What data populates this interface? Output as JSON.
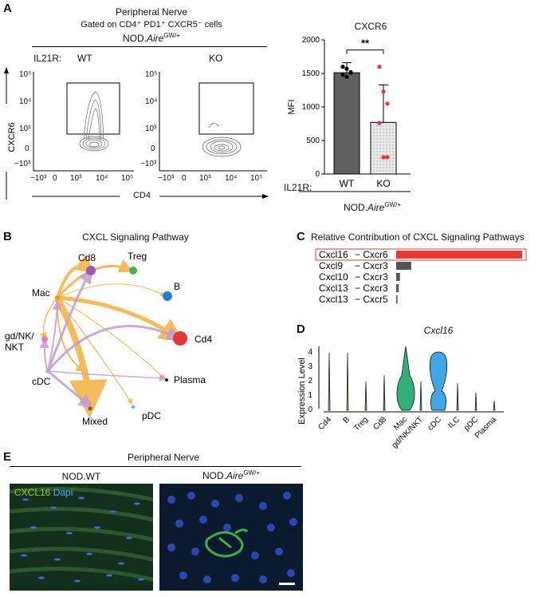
{
  "panel_labels": [
    "A",
    "B",
    "C",
    "D",
    "E"
  ],
  "panelA": {
    "tissue": "Peripheral Nerve",
    "gate": "Gated on CD4⁺ PD1⁺ CXCR5⁻ cells",
    "strain_prefix": "NOD.",
    "strain_gene": "Aire",
    "strain_sup": "GW/+",
    "il21r_label": "IL21R:",
    "wt_label": "WT",
    "ko_label": "KO",
    "y_axis": "CXCR6",
    "x_axis": "CD4",
    "flow_ticks_y": [
      "10⁵",
      "10⁴",
      "10³",
      "0",
      "−10³"
    ],
    "flow_ticks_x": [
      "−10³",
      "0",
      "10³",
      "10⁴",
      "10⁵"
    ]
  },
  "panelB": {
    "title": "CXCL Signaling Pathway",
    "nodes": [
      {
        "label": "Cd8",
        "color": "#9b59b6"
      },
      {
        "label": "Treg",
        "color": "#4caf50"
      },
      {
        "label": "B",
        "color": "#2b7bd0"
      },
      {
        "label": "Cd4",
        "color": "#e53935"
      },
      {
        "label": "Plasma",
        "color": "#222222"
      },
      {
        "label": "pDC",
        "color": "#5fb3e8"
      },
      {
        "label": "Mixed",
        "color": "#8b5a2b"
      },
      {
        "label": "cDC",
        "color": "#b39ddb"
      },
      {
        "label": "gd/NK/",
        "label2": "NKT",
        "color": "#e879c0"
      },
      {
        "label": "Mac",
        "color": "#f39c12"
      }
    ]
  },
  "panelC": {
    "title": "Relative Contribution of CXCL Signaling Pathways",
    "pairs": [
      {
        "ligand": "Cxcl16",
        "receptor": "− Cxcr6",
        "value": 1.0,
        "color": "#e53935",
        "highlight": true
      },
      {
        "ligand": "Cxcl9",
        "receptor": "− Cxcr3",
        "value": 0.12,
        "color": "#555555"
      },
      {
        "ligand": "Cxcl10",
        "receptor": "− Cxcr3",
        "value": 0.03,
        "color": "#555555"
      },
      {
        "ligand": "Cxcl13",
        "receptor": "− Cxcr3",
        "value": 0.02,
        "color": "#555555"
      },
      {
        "ligand": "Cxcl13",
        "receptor": "− Cxcr5",
        "value": 0.01,
        "color": "#555555"
      }
    ]
  },
  "panelD": {
    "gene": "Cxcl16",
    "ylabel": "Expression Level",
    "yticks": [
      "4",
      "3",
      "2",
      "1",
      "0"
    ],
    "categories": [
      "Cd4",
      "B",
      "Treg",
      "Cd8",
      "Mac",
      "gd/NK/NKT",
      "cDC",
      "ILC",
      "pDC",
      "Plasma"
    ]
  },
  "panelE": {
    "tissue": "Peripheral Nerve",
    "left_title": "NOD.WT",
    "right_prefix": "NOD.",
    "right_gene": "Aire",
    "right_sup": "GW/+",
    "stain1": "CXCL16",
    "stain2": "Dapi",
    "stain1_color": "#9acd32",
    "stain2_color": "#4aa3ff"
  },
  "chart_data": {
    "type": "bar",
    "title": "CXCR6",
    "categories": [
      "WT",
      "KO"
    ],
    "values": [
      1510,
      770
    ],
    "errors": [
      150,
      560
    ],
    "points": [
      [
        1600,
        1570,
        1520,
        1480,
        1450,
        1510
      ],
      [
        1600,
        1230,
        1050,
        760,
        250,
        250
      ]
    ],
    "ylabel": "MFI",
    "ylim": [
      0,
      2000
    ],
    "yticks": [
      "2000",
      "1500",
      "1000",
      "500",
      "0"
    ],
    "significance": "**",
    "x_prefix": "IL21R:",
    "group_label_prefix": "NOD.",
    "group_label_gene": "Aire",
    "group_label_sup": "GW/+"
  }
}
